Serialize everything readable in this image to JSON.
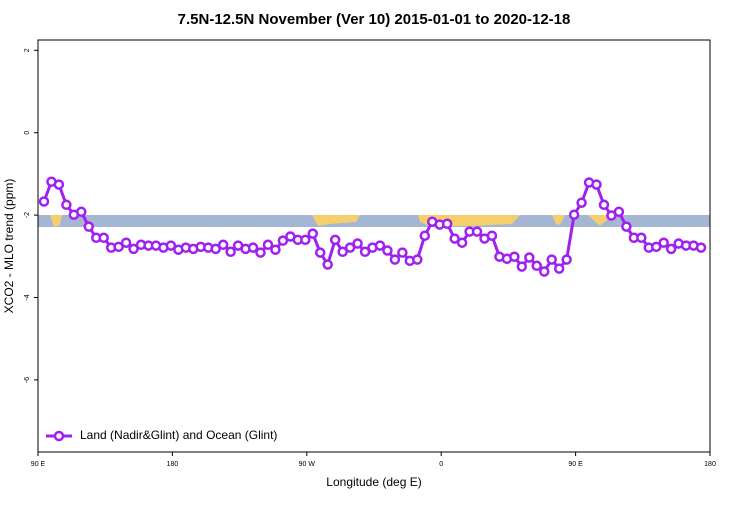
{
  "chart_data": {
    "type": "line",
    "title": "7.5N-12.5N November (Ver 10)   2015-01-01 to 2020-12-18",
    "x_label": "Longitude (deg E)",
    "y_label": "XCO2 - MLO trend (ppm)",
    "xlim": [
      90,
      540
    ],
    "xticks": [
      {
        "value": 90,
        "label": "90 E"
      },
      {
        "value": 180,
        "label": "180"
      },
      {
        "value": 270,
        "label": "90 W"
      },
      {
        "value": 360,
        "label": "0"
      },
      {
        "value": 450,
        "label": "90 E"
      },
      {
        "value": 540,
        "label": "180"
      }
    ],
    "ylim": [
      -7.75,
      2.25
    ],
    "yticks": [
      2,
      0,
      -2,
      -4,
      -6
    ],
    "legend": "bottom-left",
    "series": [
      {
        "name": "Land (Nadir&Glint) and Ocean (Glint)",
        "color": "#a020f0",
        "x": [
          94,
          99,
          104,
          109,
          114,
          119,
          124,
          129,
          134,
          139,
          144,
          149,
          154,
          159,
          164,
          169,
          174,
          179,
          184,
          189,
          194,
          199,
          204,
          209,
          214,
          219,
          224,
          229,
          234,
          239,
          244,
          249,
          254,
          259,
          264,
          269,
          274,
          279,
          284,
          289,
          294,
          299,
          304,
          309,
          314,
          319,
          324,
          329,
          334,
          339,
          344,
          349,
          354,
          359,
          364,
          369,
          374,
          379,
          384,
          389,
          394,
          399,
          404,
          409,
          414,
          419,
          424,
          429,
          434,
          439,
          444,
          449,
          454,
          459,
          464,
          469,
          474,
          479,
          484,
          489,
          494,
          499,
          504,
          509,
          514,
          519,
          524,
          529,
          534
        ],
        "values": [
          -1.67,
          -1.19,
          -1.26,
          -1.75,
          -1.99,
          -1.92,
          -2.28,
          -2.55,
          -2.55,
          -2.79,
          -2.77,
          -2.67,
          -2.82,
          -2.72,
          -2.74,
          -2.74,
          -2.79,
          -2.74,
          -2.84,
          -2.79,
          -2.82,
          -2.77,
          -2.79,
          -2.82,
          -2.72,
          -2.89,
          -2.74,
          -2.82,
          -2.79,
          -2.91,
          -2.72,
          -2.84,
          -2.62,
          -2.52,
          -2.6,
          -2.6,
          -2.45,
          -2.91,
          -3.2,
          -2.6,
          -2.89,
          -2.79,
          -2.69,
          -2.89,
          -2.79,
          -2.74,
          -2.86,
          -3.08,
          -2.91,
          -3.11,
          -3.08,
          -2.5,
          -2.16,
          -2.23,
          -2.21,
          -2.57,
          -2.67,
          -2.4,
          -2.4,
          -2.57,
          -2.5,
          -3.01,
          -3.06,
          -3.01,
          -3.25,
          -3.03,
          -3.23,
          -3.37,
          -3.08,
          -3.3,
          -3.08,
          -1.99,
          -1.7,
          -1.21,
          -1.26,
          -1.75,
          -2.01,
          -1.92,
          -2.28,
          -2.55,
          -2.55,
          -2.79,
          -2.77,
          -2.67,
          -2.82,
          -2.69,
          -2.74,
          -2.74,
          -2.79
        ]
      }
    ]
  }
}
